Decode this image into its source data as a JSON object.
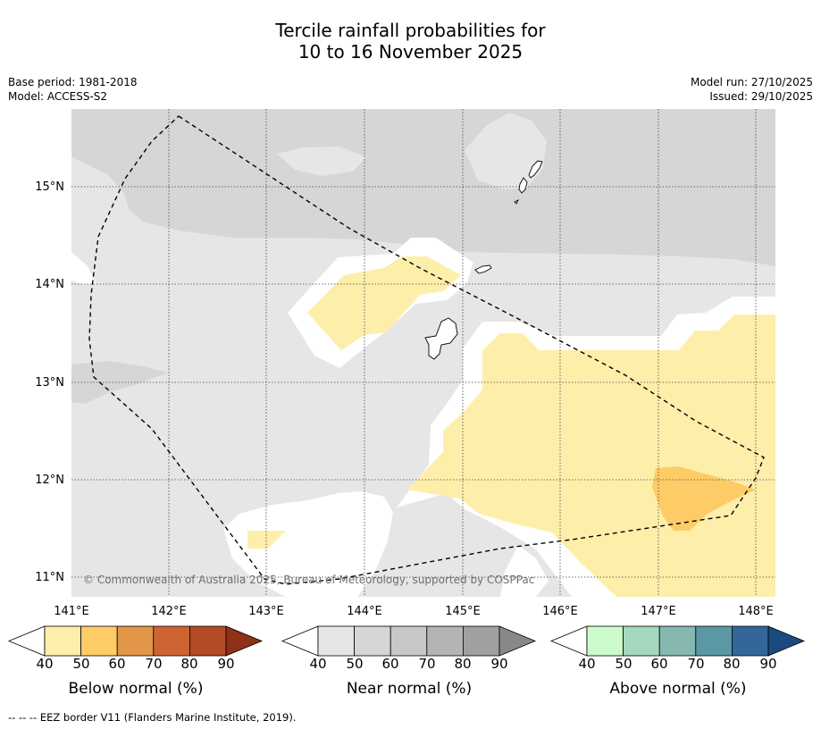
{
  "title": {
    "line1": "Tercile rainfall probabilities for",
    "line2": "10 to 16 November 2025"
  },
  "meta_left": {
    "base_period": "Base period: 1981-2018",
    "model": "Model: ACCESS-S2"
  },
  "meta_right": {
    "model_run": "Model run: 27/10/2025",
    "issued": "Issued: 29/10/2025"
  },
  "map": {
    "lon_labels": [
      "141°E",
      "142°E",
      "143°E",
      "144°E",
      "145°E",
      "146°E",
      "147°E",
      "148°E"
    ],
    "lat_labels": [
      "15°N",
      "14°N",
      "13°N",
      "12°N",
      "11°N"
    ],
    "copyright": "© Commonwealth of Australia 2025, Bureau of Meteorology, supported by COSPPac"
  },
  "colorbars": [
    {
      "label": "Below normal (%)",
      "ticks": [
        "40",
        "50",
        "60",
        "70",
        "80",
        "90"
      ],
      "colors": [
        "#fdeeaa",
        "#fdcc66",
        "#e29648",
        "#cf6433",
        "#b44a26",
        "#8f3018"
      ]
    },
    {
      "label": "Near normal (%)",
      "ticks": [
        "40",
        "50",
        "60",
        "70",
        "80",
        "90"
      ],
      "colors": [
        "#e6e6e6",
        "#d6d6d6",
        "#c8c8c8",
        "#b4b4b4",
        "#a0a0a0",
        "#888888"
      ]
    },
    {
      "label": "Above normal (%)",
      "ticks": [
        "40",
        "50",
        "60",
        "70",
        "80",
        "90"
      ],
      "colors": [
        "#ccfccc",
        "#a5d8be",
        "#86b8b0",
        "#5c97a4",
        "#336699",
        "#1a4a80"
      ]
    }
  ],
  "footer": "--  --  -- EEZ border V11 (Flanders Marine Institute, 2019)."
}
